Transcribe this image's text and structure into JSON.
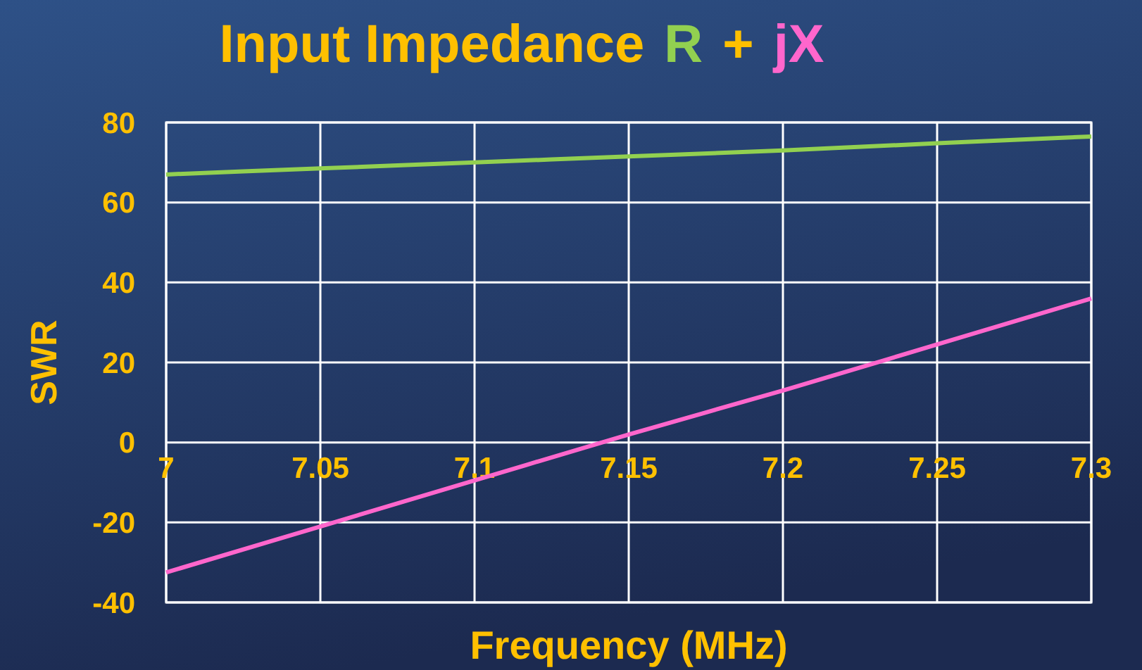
{
  "chart_data": {
    "type": "line",
    "title": "Input Impedance",
    "annotations": [
      "+"
    ],
    "legend": "top",
    "xlabel": "Frequency (MHz)",
    "ylabel": "SWR",
    "x": [
      7,
      7.05,
      7.1,
      7.15,
      7.2,
      7.25,
      7.3
    ],
    "series": [
      {
        "name": "R",
        "color": "#92d050",
        "values": [
          67,
          68.5,
          70,
          71.5,
          73,
          74.8,
          76.5
        ]
      },
      {
        "name": "jX",
        "color": "#ff66cc",
        "values": [
          -32.5,
          -21,
          -9.5,
          2,
          13,
          24.5,
          36
        ]
      }
    ],
    "xlim": [
      7,
      7.3
    ],
    "xticks": [
      7,
      7.05,
      7.1,
      7.15,
      7.2,
      7.25,
      7.3
    ],
    "ylim": [
      -40,
      80
    ],
    "yticks": [
      -40,
      -20,
      0,
      20,
      40,
      60,
      80
    ],
    "grid": true,
    "marker": "none",
    "line_style": "solid"
  }
}
